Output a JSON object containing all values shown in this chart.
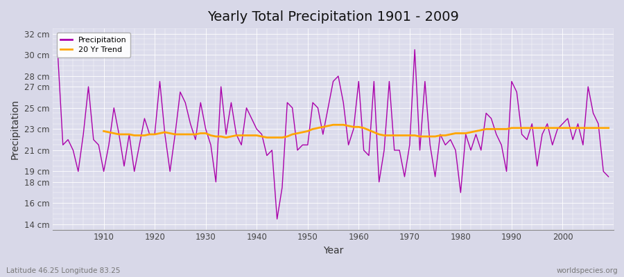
{
  "title": "Yearly Total Precipitation 1901 - 2009",
  "xlabel": "Year",
  "ylabel": "Precipitation",
  "subtitle_left": "Latitude 46.25 Longitude 83.25",
  "subtitle_right": "worldspecies.org",
  "fig_bg_color": "#d8d8e8",
  "plot_bg_color": "#dcdcec",
  "line_color_precip": "#aa00aa",
  "line_color_trend": "#ffa500",
  "ylim": [
    13.5,
    32.5
  ],
  "yticks": [
    14,
    16,
    18,
    19,
    21,
    23,
    25,
    27,
    28,
    30,
    32
  ],
  "ytick_labels": [
    "14 cm",
    "16 cm",
    "18 cm",
    "19 cm",
    "21 cm",
    "23 cm",
    "25 cm",
    "27 cm",
    "28 cm",
    "30 cm",
    "32 cm"
  ],
  "xlim": [
    1900,
    2010
  ],
  "xticks": [
    1910,
    1920,
    1930,
    1940,
    1950,
    1960,
    1970,
    1980,
    1990,
    2000
  ],
  "years": [
    1901,
    1902,
    1903,
    1904,
    1905,
    1906,
    1907,
    1908,
    1909,
    1910,
    1911,
    1912,
    1913,
    1914,
    1915,
    1916,
    1917,
    1918,
    1919,
    1920,
    1921,
    1922,
    1923,
    1924,
    1925,
    1926,
    1927,
    1928,
    1929,
    1930,
    1931,
    1932,
    1933,
    1934,
    1935,
    1936,
    1937,
    1938,
    1939,
    1940,
    1941,
    1942,
    1943,
    1944,
    1945,
    1946,
    1947,
    1948,
    1949,
    1950,
    1951,
    1952,
    1953,
    1954,
    1955,
    1956,
    1957,
    1958,
    1959,
    1960,
    1961,
    1962,
    1963,
    1964,
    1965,
    1966,
    1967,
    1968,
    1969,
    1970,
    1971,
    1972,
    1973,
    1974,
    1975,
    1976,
    1977,
    1978,
    1979,
    1980,
    1981,
    1982,
    1983,
    1984,
    1985,
    1986,
    1987,
    1988,
    1989,
    1990,
    1991,
    1992,
    1993,
    1994,
    1995,
    1996,
    1997,
    1998,
    1999,
    2000,
    2001,
    2002,
    2003,
    2004,
    2005,
    2006,
    2007,
    2008,
    2009
  ],
  "precip": [
    30.0,
    21.5,
    22.0,
    21.0,
    19.0,
    22.5,
    27.0,
    22.0,
    21.5,
    19.0,
    21.5,
    25.0,
    22.5,
    19.5,
    22.5,
    19.0,
    21.5,
    24.0,
    22.5,
    22.5,
    27.5,
    22.5,
    19.0,
    22.5,
    26.5,
    25.5,
    23.5,
    22.0,
    25.5,
    23.0,
    21.5,
    18.0,
    27.0,
    22.5,
    25.5,
    22.5,
    21.5,
    25.0,
    24.0,
    23.0,
    22.5,
    20.5,
    21.0,
    14.5,
    17.5,
    25.5,
    25.0,
    21.0,
    21.5,
    21.5,
    25.5,
    25.0,
    22.5,
    25.0,
    27.5,
    28.0,
    25.5,
    21.5,
    23.0,
    27.5,
    21.0,
    20.5,
    27.5,
    18.0,
    21.0,
    27.5,
    21.0,
    21.0,
    18.5,
    21.5,
    30.5,
    21.0,
    27.5,
    21.5,
    18.5,
    22.5,
    21.5,
    22.0,
    21.0,
    17.0,
    22.5,
    21.0,
    22.5,
    21.0,
    24.5,
    24.0,
    22.5,
    21.5,
    19.0,
    27.5,
    26.5,
    22.5,
    22.0,
    23.5,
    19.5,
    22.5,
    23.5,
    21.5,
    23.0,
    23.5,
    24.0,
    22.0,
    23.5,
    21.5,
    27.0,
    24.5,
    23.5,
    19.0,
    18.5
  ],
  "trend": [
    null,
    null,
    null,
    null,
    null,
    null,
    null,
    null,
    null,
    22.8,
    22.7,
    22.6,
    22.5,
    22.5,
    22.5,
    22.4,
    22.4,
    22.4,
    22.5,
    22.5,
    22.6,
    22.7,
    22.6,
    22.5,
    22.5,
    22.5,
    22.5,
    22.5,
    22.6,
    22.6,
    22.4,
    22.3,
    22.3,
    22.2,
    22.3,
    22.4,
    22.4,
    22.4,
    22.4,
    22.4,
    22.3,
    22.2,
    22.2,
    22.2,
    22.2,
    22.3,
    22.5,
    22.6,
    22.7,
    22.8,
    23.0,
    23.1,
    23.2,
    23.3,
    23.4,
    23.4,
    23.4,
    23.3,
    23.2,
    23.2,
    23.1,
    22.9,
    22.7,
    22.5,
    22.4,
    22.4,
    22.4,
    22.4,
    22.4,
    22.4,
    22.4,
    22.3,
    22.3,
    22.3,
    22.3,
    22.4,
    22.4,
    22.5,
    22.6,
    22.6,
    22.6,
    22.7,
    22.8,
    22.9,
    23.0,
    23.0,
    23.0,
    23.0,
    23.0,
    23.1,
    23.1,
    23.1,
    23.1,
    23.1,
    23.1,
    23.1,
    23.1,
    23.1,
    23.1,
    23.1,
    23.1,
    23.1,
    23.1,
    23.1,
    23.1,
    23.1,
    23.1,
    23.1,
    23.1
  ]
}
